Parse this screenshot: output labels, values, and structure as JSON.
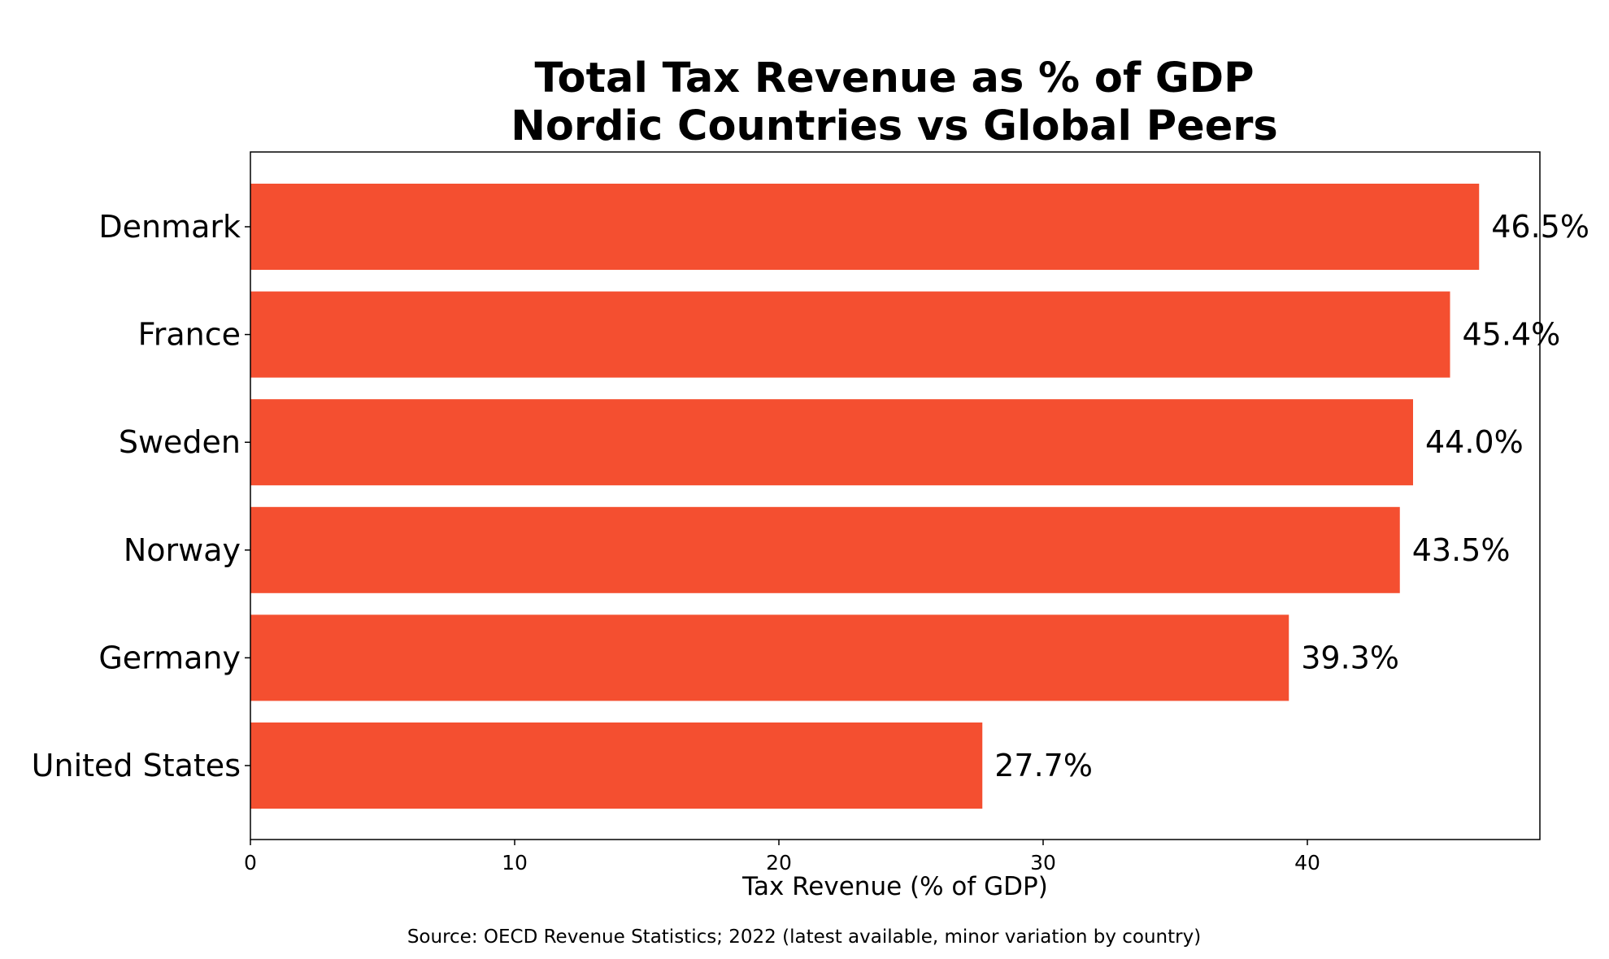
{
  "colors": {
    "bar": "#f44f30",
    "text": "#000000",
    "axis": "#000000",
    "background": "#ffffff"
  },
  "chart_data": {
    "type": "bar",
    "orientation": "horizontal",
    "title_lines": [
      "Total Tax Revenue as % of GDP",
      "Nordic Countries vs Global Peers"
    ],
    "categories": [
      "Denmark",
      "France",
      "Sweden",
      "Norway",
      "Germany",
      "United States"
    ],
    "values": [
      46.5,
      45.4,
      44.0,
      43.5,
      39.3,
      27.7
    ],
    "value_labels": [
      "46.5%",
      "45.4%",
      "44.0%",
      "43.5%",
      "39.3%",
      "27.7%"
    ],
    "xlabel": "Tax Revenue (% of GDP)",
    "ylabel": "",
    "xlim": [
      0,
      48.8
    ],
    "xticks": [
      0,
      10,
      20,
      30,
      40
    ],
    "xtick_labels": [
      "0",
      "10",
      "20",
      "30",
      "40"
    ],
    "grid": false,
    "legend": "none",
    "source": "Source: OECD Revenue Statistics; 2022 (latest available, minor variation by country)"
  }
}
